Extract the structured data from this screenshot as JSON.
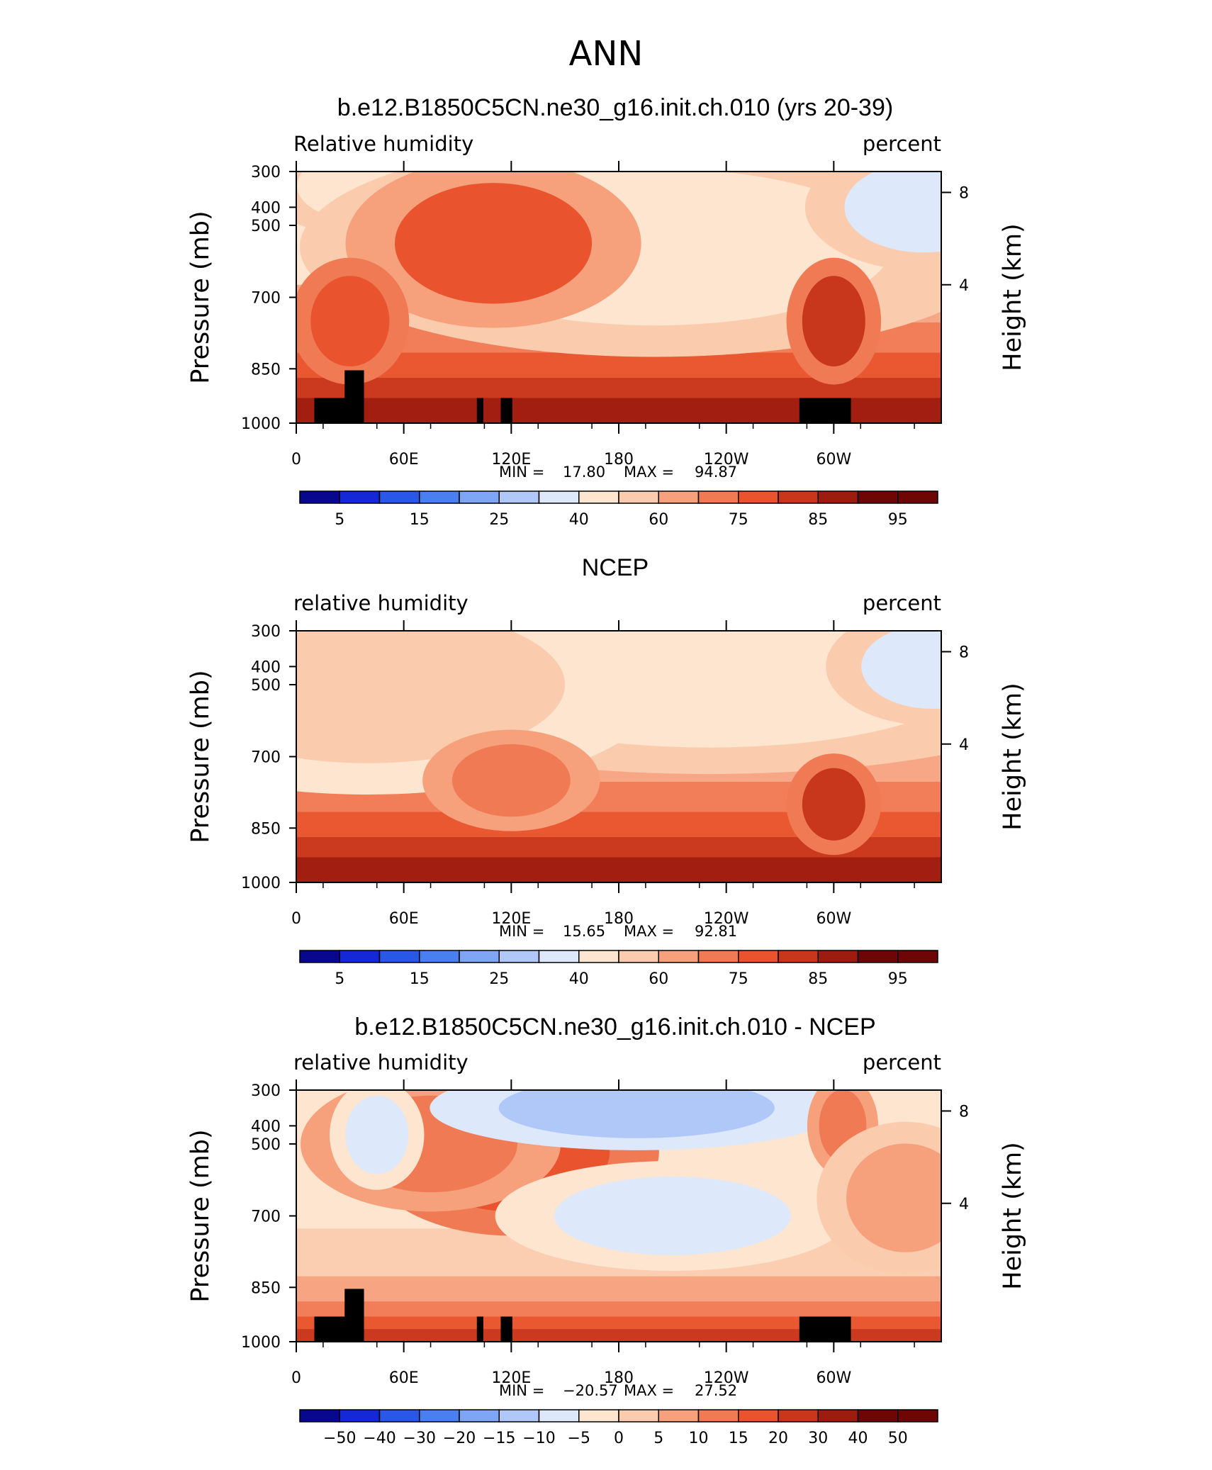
{
  "figure": {
    "season": "ANN"
  },
  "palettes": {
    "abs": [
      "#08088f",
      "#1428d6",
      "#2a58e6",
      "#4a7ff0",
      "#7fa6f4",
      "#b0c8f8",
      "#dde8fb",
      "#fde5d0",
      "#fbcbae",
      "#f6a07c",
      "#f07a54",
      "#e9542e",
      "#c8361c",
      "#9c1c10",
      "#6e0606"
    ],
    "diff": [
      "#08088f",
      "#1428d6",
      "#2a58e6",
      "#4a7ff0",
      "#7fa6f4",
      "#b0c8f8",
      "#dde8fb",
      "#fde5d0",
      "#fbcbae",
      "#f6a07c",
      "#f07a54",
      "#e9542e",
      "#c8361c",
      "#9c1c10",
      "#6e0606"
    ]
  },
  "chart_data": [
    {
      "type": "heatmap",
      "title": "b.e12.B1850C5CN.ne30_g16.init.ch.010 (yrs 20-39)",
      "left_label": "Relative  humidity",
      "right_label": "percent",
      "ylabel": "Pressure  (mb)",
      "y2label": "Height  (km)",
      "xticks": [
        "0",
        "60E",
        "120E",
        "180",
        "120W",
        "60W"
      ],
      "yticks": [
        "300",
        "400",
        "500",
        "700",
        "850",
        "1000"
      ],
      "y2ticks": [
        "8",
        "4"
      ],
      "min_label": "MIN =",
      "min_value": "17.80",
      "max_label": "MAX =",
      "max_value": "94.87",
      "colorbar_labels": [
        "5",
        "15",
        "25",
        "40",
        "60",
        "75",
        "85",
        "95"
      ],
      "features": [
        {
          "lon": 35,
          "p": 400,
          "value": 25,
          "rx": 8,
          "ry": 80
        },
        {
          "lon": 40,
          "p": 340,
          "value": 45,
          "rx": 18,
          "ry": 120
        },
        {
          "lon": 200,
          "p": 400,
          "value": 25,
          "rx": 40,
          "ry": 140
        },
        {
          "lon": 200,
          "p": 560,
          "value": 45,
          "rx": 60,
          "ry": 260
        },
        {
          "lon": 350,
          "p": 400,
          "value": 40,
          "rx": 20,
          "ry": 150
        },
        {
          "lon": 110,
          "p": 550,
          "value": 78,
          "rx": 25,
          "ry": 200
        },
        {
          "lon": 300,
          "p": 750,
          "value": 82,
          "rx": 8,
          "ry": 150
        },
        {
          "lon": 30,
          "p": 750,
          "value": 80,
          "rx": 10,
          "ry": 150
        }
      ]
    },
    {
      "type": "heatmap",
      "title": "NCEP",
      "left_label": "relative  humidity",
      "right_label": "percent",
      "ylabel": "Pressure  (mb)",
      "y2label": "Height  (km)",
      "xticks": [
        "0",
        "60E",
        "120E",
        "180",
        "120W",
        "60W"
      ],
      "yticks": [
        "300",
        "400",
        "500",
        "700",
        "850",
        "1000"
      ],
      "y2ticks": [
        "8",
        "4"
      ],
      "min_label": "MIN =",
      "min_value": "15.65",
      "max_label": "MAX =",
      "max_value": "92.81",
      "colorbar_labels": [
        "5",
        "15",
        "25",
        "40",
        "60",
        "75",
        "85",
        "95"
      ],
      "features": [
        {
          "lon": 250,
          "p": 420,
          "value": 28,
          "rx": 30,
          "ry": 120
        },
        {
          "lon": 230,
          "p": 480,
          "value": 45,
          "rx": 65,
          "ry": 220
        },
        {
          "lon": 355,
          "p": 400,
          "value": 40,
          "rx": 18,
          "ry": 140
        },
        {
          "lon": 40,
          "p": 500,
          "value": 52,
          "rx": 50,
          "ry": 260
        },
        {
          "lon": 300,
          "p": 800,
          "value": 82,
          "rx": 8,
          "ry": 120
        },
        {
          "lon": 120,
          "p": 750,
          "value": 72,
          "rx": 15,
          "ry": 120
        }
      ]
    },
    {
      "type": "heatmap",
      "title": "b.e12.B1850C5CN.ne30_g16.init.ch.010 - NCEP",
      "left_label": "relative  humidity",
      "right_label": "percent",
      "ylabel": "Pressure  (mb)",
      "y2label": "Height  (km)",
      "xticks": [
        "0",
        "60E",
        "120E",
        "180",
        "120W",
        "60W"
      ],
      "yticks": [
        "300",
        "400",
        "500",
        "700",
        "850",
        "1000"
      ],
      "y2ticks": [
        "8",
        "4"
      ],
      "min_label": "MIN =",
      "min_value": "−20.57",
      "max_label": "MAX =",
      "max_value": "27.52",
      "colorbar_labels": [
        "−50",
        "−40",
        "−30",
        "−20",
        "−15",
        "−10",
        "−5",
        "0",
        "5",
        "10",
        "15",
        "20",
        "30",
        "40",
        "50"
      ],
      "features": [
        {
          "lon": 120,
          "p": 520,
          "value": 20,
          "rx": 25,
          "ry": 200
        },
        {
          "lon": 75,
          "p": 500,
          "value": 12,
          "rx": 22,
          "ry": 160
        },
        {
          "lon": 190,
          "p": 350,
          "value": -12,
          "rx": 35,
          "ry": 100
        },
        {
          "lon": 210,
          "p": 700,
          "value": -7,
          "rx": 30,
          "ry": 130
        },
        {
          "lon": 45,
          "p": 450,
          "value": -8,
          "rx": 8,
          "ry": 130
        },
        {
          "lon": 305,
          "p": 400,
          "value": 12,
          "rx": 6,
          "ry": 120
        },
        {
          "lon": 340,
          "p": 650,
          "value": 10,
          "rx": 15,
          "ry": 180
        }
      ]
    }
  ]
}
